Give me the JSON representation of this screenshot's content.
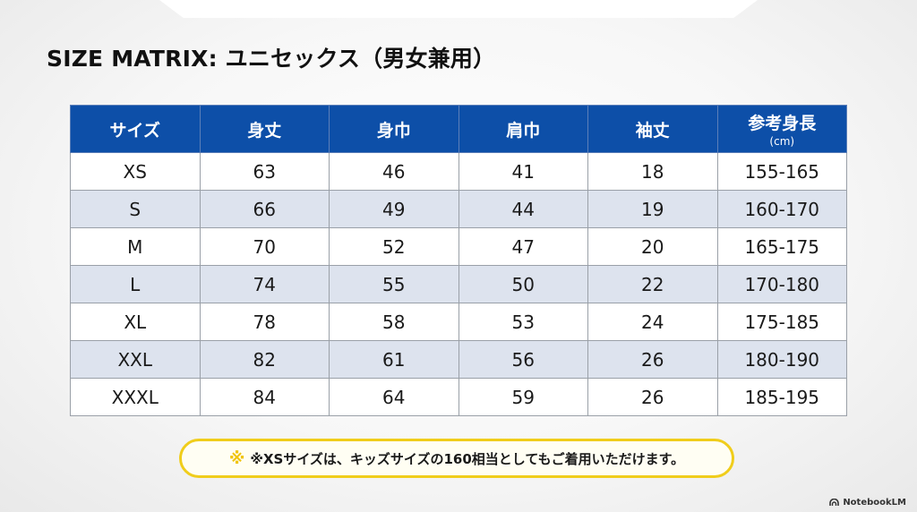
{
  "title": "SIZE MATRIX: ユニセックス（男女兼用）",
  "table": {
    "headers": [
      "サイズ",
      "身丈",
      "身巾",
      "肩巾",
      "袖丈",
      "参考身長"
    ],
    "header_sub": "(cm)",
    "rows": [
      [
        "XS",
        "63",
        "46",
        "41",
        "18",
        "155-165"
      ],
      [
        "S",
        "66",
        "49",
        "44",
        "19",
        "160-170"
      ],
      [
        "M",
        "70",
        "52",
        "47",
        "20",
        "165-175"
      ],
      [
        "L",
        "74",
        "55",
        "50",
        "22",
        "170-180"
      ],
      [
        "XL",
        "78",
        "58",
        "53",
        "24",
        "175-185"
      ],
      [
        "XXL",
        "82",
        "61",
        "56",
        "26",
        "180-190"
      ],
      [
        "XXXL",
        "84",
        "64",
        "59",
        "26",
        "185-195"
      ]
    ]
  },
  "note": {
    "mark": "※",
    "text": "※XSサイズは、キッズサイズの160相当としてもご着用いただけます。"
  },
  "brand": {
    "label": "NotebookLM",
    "icon": "notebooklm-logo-icon"
  },
  "colors": {
    "header_bg": "#0d4fa8",
    "stripe": "#dde3ee",
    "note_border": "#f0cd1b"
  }
}
